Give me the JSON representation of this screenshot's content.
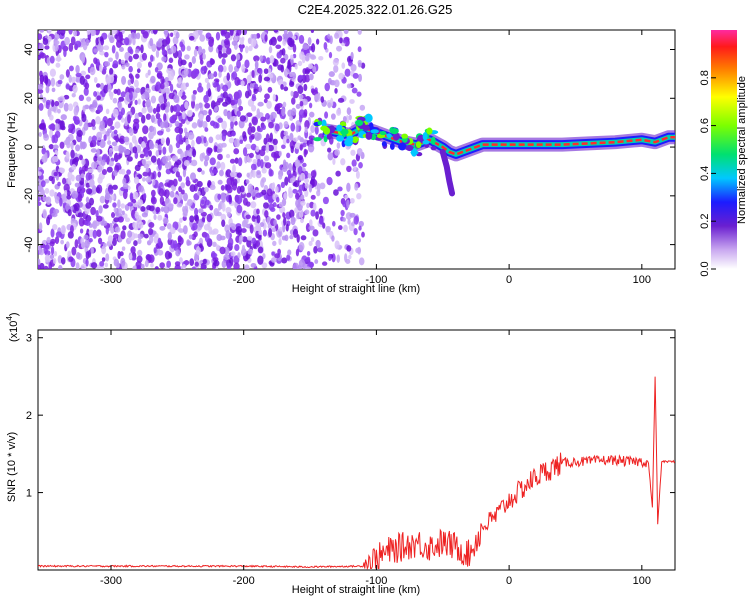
{
  "title": "C2E4.2025.322.01.26.G25",
  "colors": {
    "snr_line": "#ee2222",
    "spectrogram_noise": "#8a2be2",
    "ridge": "#ff2b2b"
  },
  "chart_data": [
    {
      "type": "heatmap",
      "xlabel": "Height of straight line (km)",
      "ylabel": "Frequency (Hz)",
      "xlim": [
        -355,
        125
      ],
      "ylim": [
        -50,
        48
      ],
      "xticks": [
        -300,
        -200,
        -100,
        0,
        100
      ],
      "xtick_labels": [
        "-300",
        "-200",
        "-100",
        "0",
        "100"
      ],
      "yticks": [
        -40,
        -20,
        0,
        20,
        40
      ],
      "ytick_labels": [
        "-40",
        "-20",
        "0",
        "20",
        "40"
      ],
      "colorbar": {
        "label": "Normalized spectral amplitude",
        "range": [
          0,
          1
        ],
        "ticks": [
          0,
          0.2,
          0.4,
          0.6,
          0.8
        ],
        "tick_labels": [
          "0.0",
          "0.2",
          "0.4",
          "0.6",
          "0.8"
        ],
        "colormap": "rainbow (white-purple-blue-cyan-green-yellow-red-magenta)"
      },
      "noise_region_x": [
        -355,
        -110
      ],
      "ridge_path_freq_vs_height": [
        [
          -140,
          7
        ],
        [
          -130,
          6
        ],
        [
          -120,
          5
        ],
        [
          -110,
          8
        ],
        [
          -100,
          6
        ],
        [
          -90,
          4
        ],
        [
          -80,
          2
        ],
        [
          -70,
          1
        ],
        [
          -60,
          3
        ],
        [
          -50,
          0
        ],
        [
          -45,
          -2
        ],
        [
          -40,
          -3
        ],
        [
          -30,
          -1
        ],
        [
          -20,
          1
        ],
        [
          -10,
          1
        ],
        [
          0,
          1
        ],
        [
          20,
          1
        ],
        [
          40,
          1
        ],
        [
          60,
          1.5
        ],
        [
          80,
          2
        ],
        [
          100,
          3
        ],
        [
          110,
          2
        ],
        [
          120,
          4
        ],
        [
          125,
          4
        ]
      ],
      "grid": false
    },
    {
      "type": "line",
      "xlabel": "Height of straight line (km)",
      "ylabel": "SNR (10 * v/v)",
      "y_multiplier_label": "(x10",
      "y_multiplier_exp": "4",
      "xlim": [
        -355,
        125
      ],
      "ylim": [
        0,
        3.1
      ],
      "xticks": [
        -300,
        -200,
        -100,
        0,
        100
      ],
      "xtick_labels": [
        "-300",
        "-200",
        "-100",
        "0",
        "100"
      ],
      "yticks": [
        1,
        2,
        3
      ],
      "ytick_labels": [
        "1",
        "2",
        "3"
      ],
      "series": [
        {
          "x": [
            -355,
            -300,
            -250,
            -200,
            -150,
            -110,
            -100,
            -90,
            -80,
            -70,
            -60,
            -50,
            -40,
            -30,
            -20,
            -10,
            0,
            10,
            20,
            30,
            40,
            50,
            60,
            70,
            80,
            90,
            100,
            105,
            108,
            110,
            112,
            115,
            120,
            125
          ],
          "y": [
            0.05,
            0.05,
            0.05,
            0.05,
            0.04,
            0.05,
            0.15,
            0.25,
            0.3,
            0.35,
            0.3,
            0.35,
            0.3,
            0.2,
            0.55,
            0.7,
            0.9,
            1.05,
            1.2,
            1.3,
            1.38,
            1.4,
            1.4,
            1.42,
            1.42,
            1.4,
            1.4,
            1.38,
            0.8,
            2.5,
            0.6,
            1.4,
            1.4,
            1.4
          ]
        }
      ],
      "grid": false
    }
  ]
}
